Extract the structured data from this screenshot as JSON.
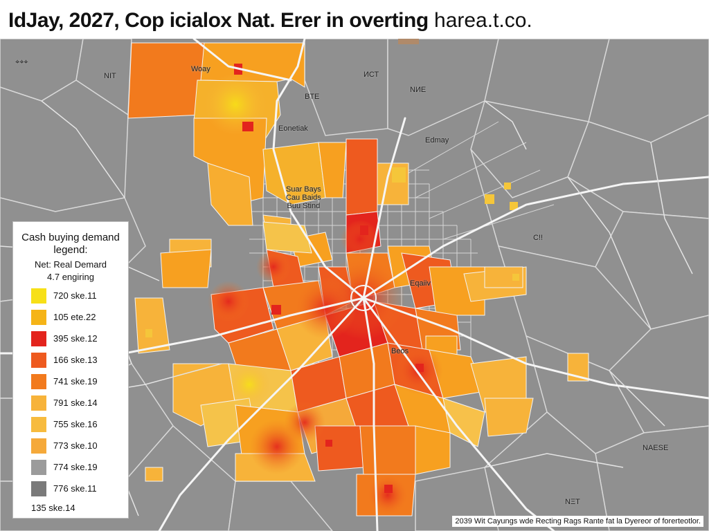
{
  "title": {
    "main": "IdJay, 2027, Cop icialox Nat. Erer in overting",
    "domain": "harea.t.co."
  },
  "legend": {
    "title": "Cash buying demand\nlegend:",
    "subtitle_1": "Net: Real Demard",
    "subtitle_2": "4.7 engiring",
    "items": [
      {
        "label": "720 ske.11",
        "color": "#f7e017"
      },
      {
        "label": "105 ete.22",
        "color": "#f5b417"
      },
      {
        "label": "395 ske.12",
        "color": "#e3241d"
      },
      {
        "label": "166 ske.13",
        "color": "#ee5a1f"
      },
      {
        "label": "741 ske.19",
        "color": "#f27a1d"
      },
      {
        "label": "791 ske.14",
        "color": "#f7b33a"
      },
      {
        "label": "755 ske.16",
        "color": "#f7bb3e"
      },
      {
        "label": "773 ske.10",
        "color": "#f5a93a"
      },
      {
        "label": "774 ske.19",
        "color": "#9b9b9b"
      },
      {
        "label": "776 ske.11",
        "color": "#7a7a7a"
      }
    ],
    "footer": "135 ske.14"
  },
  "map_labels": [
    {
      "text": "NIT"
    },
    {
      "text": "ИСТ"
    },
    {
      "text": "NИE"
    },
    {
      "text": "BTE"
    },
    {
      "text": "Woay"
    },
    {
      "text": "Edmay"
    },
    {
      "text": "Eonetiak"
    },
    {
      "text": "Suar Bays\nCau Baids\nBuu Stind"
    },
    {
      "text": "Eqaiiv"
    },
    {
      "text": "Beos"
    },
    {
      "text": "C!!"
    },
    {
      "text": "NAESE"
    },
    {
      "text": "NΞT"
    }
  ],
  "caption": "2039 Wit Cayungs wde Recting Rags Rante fat la Dyereor of forerteotlor."
}
